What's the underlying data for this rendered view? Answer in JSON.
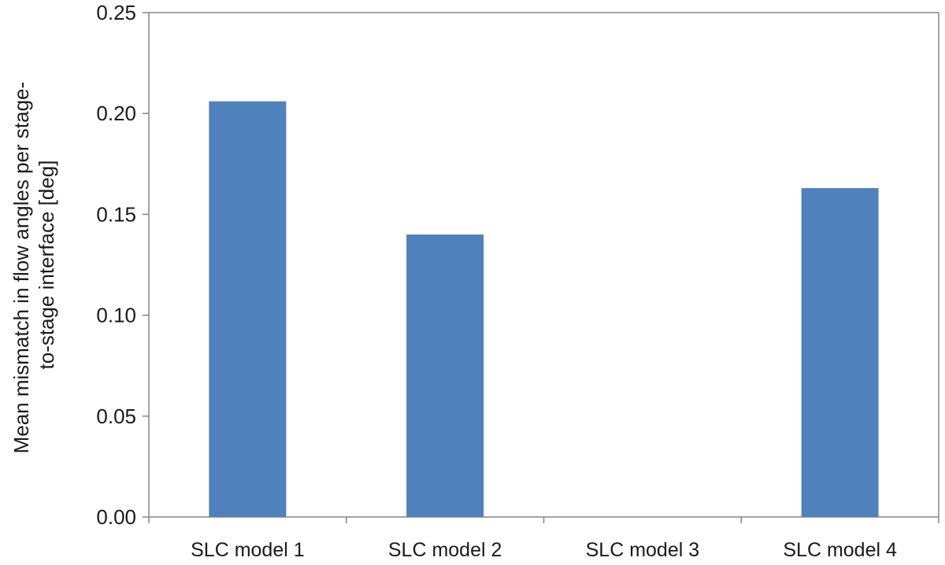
{
  "chart_data": {
    "type": "bar",
    "categories": [
      "SLC model 1",
      "SLC model 2",
      "SLC model 3",
      "SLC model 4"
    ],
    "values": [
      0.206,
      0.14,
      0.0,
      0.163
    ],
    "title": "",
    "xlabel": "",
    "ylabel_lines": [
      "Mean mismatch in flow angles per stage-",
      "to-stage interface [deg]"
    ],
    "ylim": [
      0.0,
      0.25
    ],
    "yticks": [
      "0.00",
      "0.05",
      "0.10",
      "0.15",
      "0.20",
      "0.25"
    ],
    "grid": false,
    "legend": "none",
    "bar_color": "#4f81bd"
  }
}
